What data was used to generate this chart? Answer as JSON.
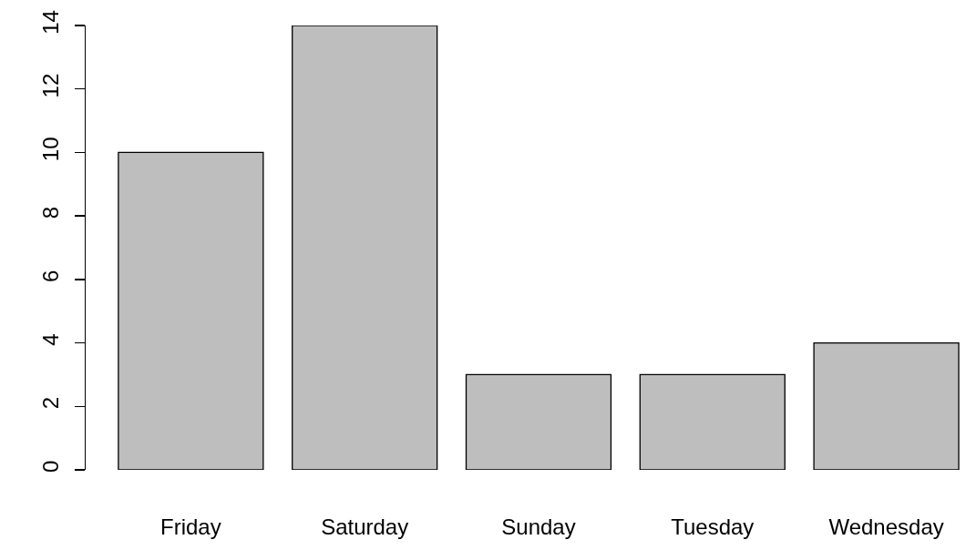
{
  "chart_data": {
    "type": "bar",
    "categories": [
      "Friday",
      "Saturday",
      "Sunday",
      "Tuesday",
      "Wednesday"
    ],
    "values": [
      10,
      14,
      3,
      3,
      4
    ],
    "color": "#bebebe",
    "ylim": [
      0,
      14
    ],
    "yticks": [
      0,
      2,
      4,
      6,
      8,
      10,
      12,
      14
    ]
  }
}
